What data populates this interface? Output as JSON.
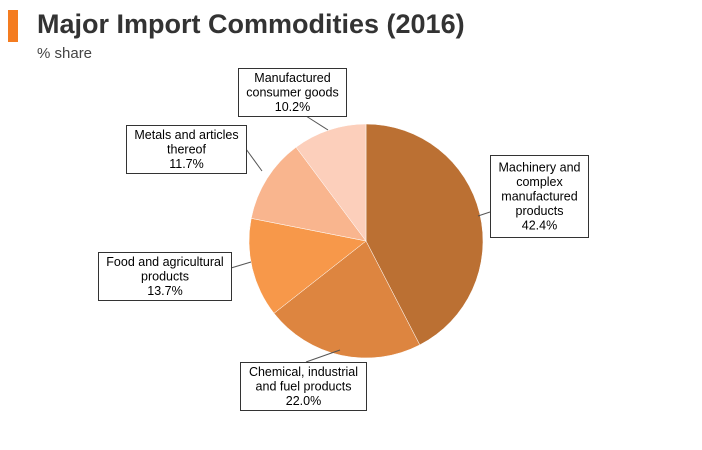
{
  "header": {
    "title": "Major Import Commodities (2016)",
    "subtitle": "% share",
    "accent_color": "#f47c20"
  },
  "chart_data": {
    "type": "pie",
    "title": "Major Import Commodities (2016)",
    "subtitle": "% share",
    "slices": [
      {
        "name": "Machinery and complex manufactured products",
        "value": 42.4,
        "value_label": "42.4%",
        "label_lines": [
          "Machinery and",
          "complex",
          "manufactured",
          "products",
          "42.4%"
        ],
        "color": "#bb7033"
      },
      {
        "name": "Chemical, industrial and fuel products",
        "value": 22.0,
        "value_label": "22.0%",
        "label_lines": [
          "Chemical, industrial",
          "and fuel products",
          "22.0%"
        ],
        "color": "#dd8540"
      },
      {
        "name": "Food and agricultural products",
        "value": 13.7,
        "value_label": "13.7%",
        "label_lines": [
          "Food and agricultural",
          "products",
          "13.7%"
        ],
        "color": "#f7984a"
      },
      {
        "name": "Metals and articles thereof",
        "value": 11.7,
        "value_label": "11.7%",
        "label_lines": [
          "Metals and articles",
          "thereof",
          "11.7%"
        ],
        "color": "#f9b58e"
      },
      {
        "name": "Manufactured consumer goods",
        "value": 10.2,
        "value_label": "10.2%",
        "label_lines": [
          "Manufactured",
          "consumer goods",
          "10.2%"
        ],
        "color": "#fccfbb"
      }
    ]
  }
}
